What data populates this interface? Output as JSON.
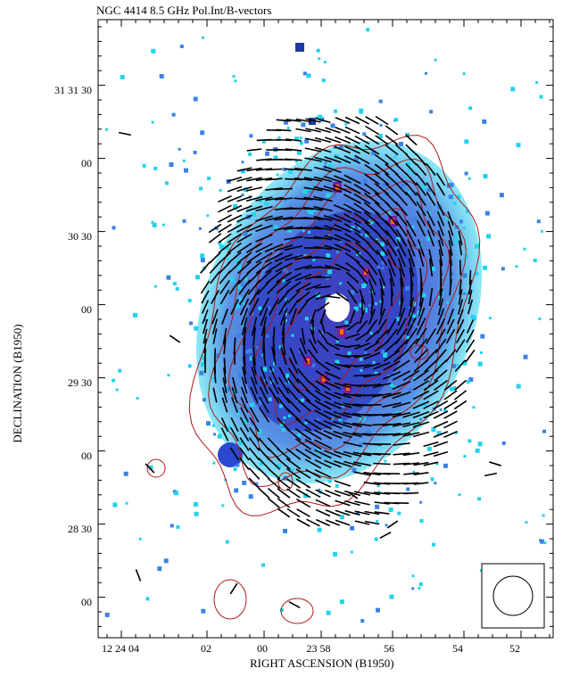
{
  "chart_data": {
    "type": "scatter",
    "title": "NGC 4414 8.5 GHz Pol.Int/B-vectors",
    "xlabel": "RIGHT ASCENSION (B1950)",
    "ylabel": "DECLINATION (B1950)",
    "x_tick_labels": [
      "12 24 04",
      "02",
      "00",
      "23 58",
      "56",
      "54",
      "52"
    ],
    "y_tick_labels": [
      "31 31 30",
      "00",
      "30 30",
      "00",
      "29 30",
      "00",
      "28 30",
      "00"
    ],
    "colors": {
      "contour": "#b01818",
      "vectors": "#000000",
      "emission_low": "#22d3ee",
      "emission_mid": "#1e40c8",
      "emission_high": "#7a1fa0",
      "emission_peak": "#ff6a00"
    }
  }
}
